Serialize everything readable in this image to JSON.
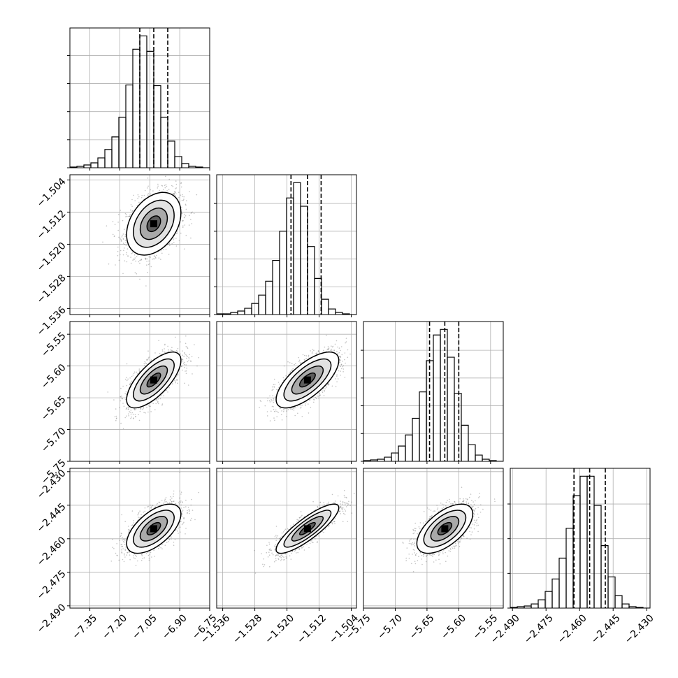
{
  "chart_data": {
    "type": "corner",
    "grid": true,
    "parameters": [
      {
        "ticks": [
          -7.35,
          -7.2,
          -7.05,
          -6.9,
          -6.75
        ],
        "tick_labels": [
          "−7.35",
          "−7.20",
          "−7.05",
          "−6.90",
          "−6.75"
        ],
        "range": [
          -7.45,
          -6.75
        ],
        "mean": -7.03,
        "std": 0.068,
        "quantiles": [
          -7.1,
          -7.03,
          -6.96
        ]
      },
      {
        "ticks": [
          -1.536,
          -1.528,
          -1.52,
          -1.512,
          -1.504
        ],
        "tick_labels": [
          "−1.536",
          "−1.528",
          "−1.520",
          "−1.512",
          "−1.504"
        ],
        "range": [
          -1.5375,
          -1.5027
        ],
        "mean": -1.5149,
        "std": 0.0039,
        "quantiles": [
          -1.519,
          -1.5149,
          -1.5115
        ]
      },
      {
        "ticks": [
          -5.75,
          -5.7,
          -5.65,
          -5.6,
          -5.55
        ],
        "tick_labels": [
          "−5.75",
          "−5.70",
          "−5.65",
          "−5.60",
          "−5.55"
        ],
        "range": [
          -5.75,
          -5.53
        ],
        "mean": -5.622,
        "std": 0.022,
        "quantiles": [
          -5.646,
          -5.622,
          -5.6
        ]
      },
      {
        "ticks": [
          -2.49,
          -2.475,
          -2.46,
          -2.445,
          -2.43
        ],
        "tick_labels": [
          "−2.490",
          "−2.475",
          "−2.460",
          "−2.445",
          "−2.430"
        ],
        "range": [
          -2.491,
          -2.4285
        ],
        "mean": -2.4555,
        "std": 0.0055,
        "quantiles": [
          -2.4625,
          -2.4555,
          -2.4485
        ]
      }
    ],
    "correlations": [
      [
        1,
        0.35,
        0.7,
        0.6
      ],
      [
        0.35,
        1,
        0.7,
        0.85
      ],
      [
        0.7,
        0.7,
        1,
        0.6
      ],
      [
        0.6,
        0.85,
        0.6,
        1
      ]
    ],
    "histograms": [
      {
        "counts": [
          1,
          2,
          4,
          7,
          14,
          26,
          44,
          72,
          118,
          169,
          188,
          166,
          117,
          72,
          38,
          16,
          6,
          2,
          1,
          0
        ],
        "y_ticks": [
          0,
          40,
          80,
          120,
          160
        ]
      },
      {
        "counts": [
          1,
          1,
          3,
          5,
          9,
          16,
          28,
          48,
          78,
          120,
          168,
          190,
          156,
          98,
          52,
          22,
          8,
          3,
          1,
          0
        ],
        "y_ticks": [
          0,
          40,
          80,
          120,
          160
        ]
      },
      {
        "counts": [
          1,
          2,
          3,
          6,
          12,
          22,
          38,
          62,
          100,
          145,
          182,
          190,
          150,
          98,
          52,
          24,
          9,
          3,
          1,
          0
        ],
        "y_ticks": [
          0,
          40,
          80,
          120,
          160
        ]
      },
      {
        "counts": [
          1,
          2,
          3,
          6,
          12,
          24,
          42,
          72,
          115,
          162,
          190,
          190,
          148,
          90,
          45,
          18,
          6,
          2,
          1,
          0
        ],
        "y_ticks": [
          0,
          50,
          100,
          150
        ]
      }
    ]
  }
}
